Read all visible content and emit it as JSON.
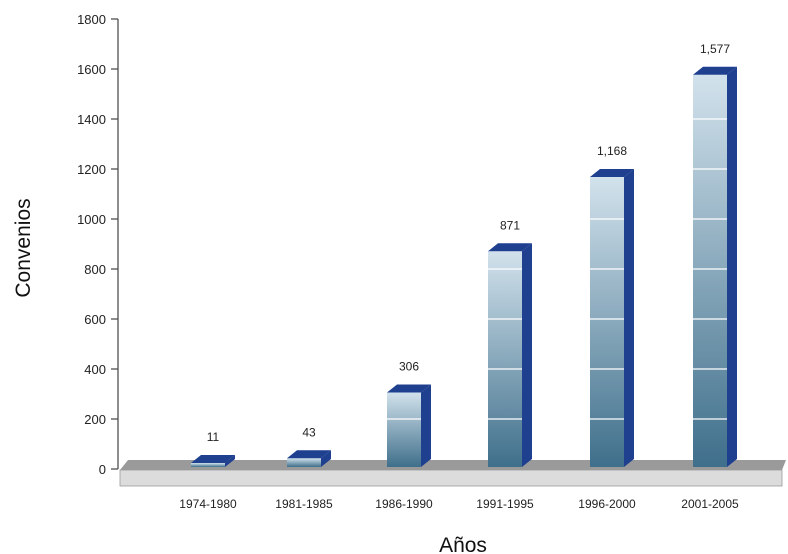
{
  "chart_data": {
    "type": "bar",
    "title": "",
    "xlabel": "Años",
    "ylabel": "Convenios",
    "ylim": [
      0,
      1800
    ],
    "yticks": [
      0,
      200,
      400,
      600,
      800,
      1000,
      1200,
      1400,
      1600,
      1800
    ],
    "categories": [
      "1974-1980",
      "1981-1985",
      "1986-1990",
      "1991-1995",
      "1996-2000",
      "2001-2005"
    ],
    "values": [
      11,
      43,
      306,
      871,
      1168,
      1577
    ],
    "value_labels": [
      "11",
      "43",
      "306",
      "871",
      "1,168",
      "1,577"
    ],
    "grid": false,
    "style": "3d",
    "colors": {
      "bar_top": "#d2e2ec",
      "bar_bottom": "#3f6f8b",
      "bar_side": "#1f3f8f",
      "floor_top": "#9a9a9a",
      "floor_front": "#dcdcdc"
    }
  }
}
